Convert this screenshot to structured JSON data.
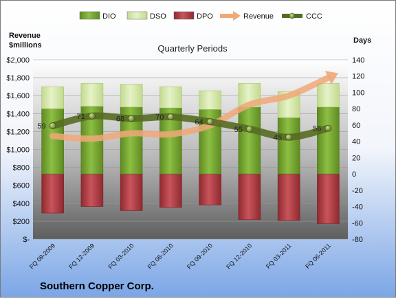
{
  "chart_data": {
    "type": "bar",
    "title": "Quarterly Periods",
    "company": "Southern Copper Corp.",
    "left_axis_title": [
      "Revenue",
      "$millions"
    ],
    "right_axis_title": "Days",
    "categories": [
      "FQ 09-2009",
      "FQ 12-2009",
      "FQ 03-2010",
      "FQ 06-2010",
      "FQ 09-2010",
      "FQ 12-2010",
      "FQ 03-2011",
      "FQ 06-2011"
    ],
    "left_ticks": [
      "$-",
      "$200",
      "$400",
      "$600",
      "$800",
      "$1,000",
      "$1,200",
      "$1,400",
      "$1,600",
      "$1,800",
      "$2,000"
    ],
    "right_ticks": [
      "-80",
      "-60",
      "-40",
      "-20",
      "0",
      "20",
      "40",
      "60",
      "80",
      "100",
      "120",
      "140"
    ],
    "ylim_left": [
      0,
      2000
    ],
    "ylim_right": [
      -80,
      140
    ],
    "legend": [
      "DIO",
      "DSO",
      "DPO",
      "Revenue",
      "CCC"
    ],
    "legend_position": "top",
    "series": [
      {
        "name": "DIO",
        "axis": "right",
        "values": [
          80,
          83,
          82,
          81,
          79,
          82,
          69,
          82
        ]
      },
      {
        "name": "DSO",
        "axis": "right",
        "values": [
          27,
          28,
          28,
          26,
          23,
          29,
          32,
          29
        ]
      },
      {
        "name": "DPO",
        "axis": "right",
        "values": [
          -48,
          -40,
          -45,
          -41,
          -38,
          -56,
          -57,
          -61
        ]
      },
      {
        "name": "Revenue",
        "axis": "left",
        "values": [
          1150,
          1120,
          1180,
          1170,
          1270,
          1500,
          1600,
          1800
        ]
      },
      {
        "name": "CCC",
        "axis": "right",
        "values": [
          59,
          71,
          68,
          70,
          64,
          55,
          45,
          56
        ]
      }
    ],
    "colors": {
      "DIO": "#77a330",
      "DSO": "#d3e6a6",
      "DPO": "#b83a42",
      "Revenue": "#f0a878",
      "CCC": "#566b22"
    }
  }
}
